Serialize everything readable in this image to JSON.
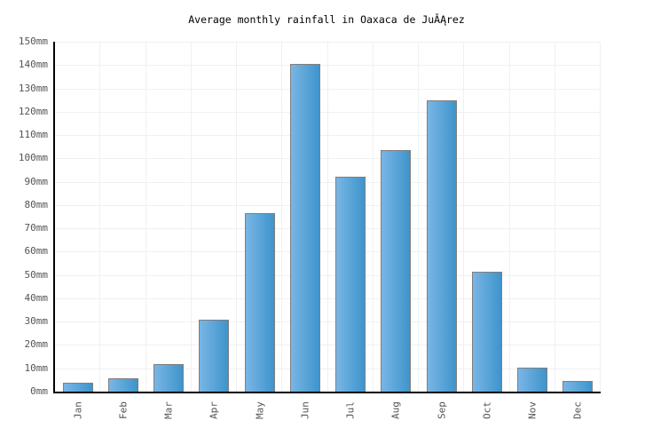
{
  "chart_data": {
    "type": "bar",
    "title": "Average monthly rainfall in Oaxaca de JuĂĄrez",
    "categories": [
      "Jan",
      "Feb",
      "Mar",
      "Apr",
      "May",
      "Jun",
      "Jul",
      "Aug",
      "Sep",
      "Oct",
      "Nov",
      "Dec"
    ],
    "values": [
      3.8,
      5.7,
      11.8,
      30.8,
      76.7,
      140.4,
      92.3,
      103.7,
      124.9,
      51.4,
      10.3,
      4.5
    ],
    "unit": "mm",
    "xlabel": "",
    "ylabel": "",
    "ylim": [
      0,
      150
    ],
    "ytick_step": 10,
    "ytick_suffix": "mm",
    "grid": true,
    "legend": "none",
    "colors": {
      "background": "#ffffff",
      "title": "#000000",
      "axis": "#000000",
      "gridline": "#f0f0f0",
      "tick_label": "#545454",
      "bar_gradient_left": "#79b6e5",
      "bar_gradient_right": "#3e94cb",
      "bar_border": "#7f7f7f"
    }
  }
}
